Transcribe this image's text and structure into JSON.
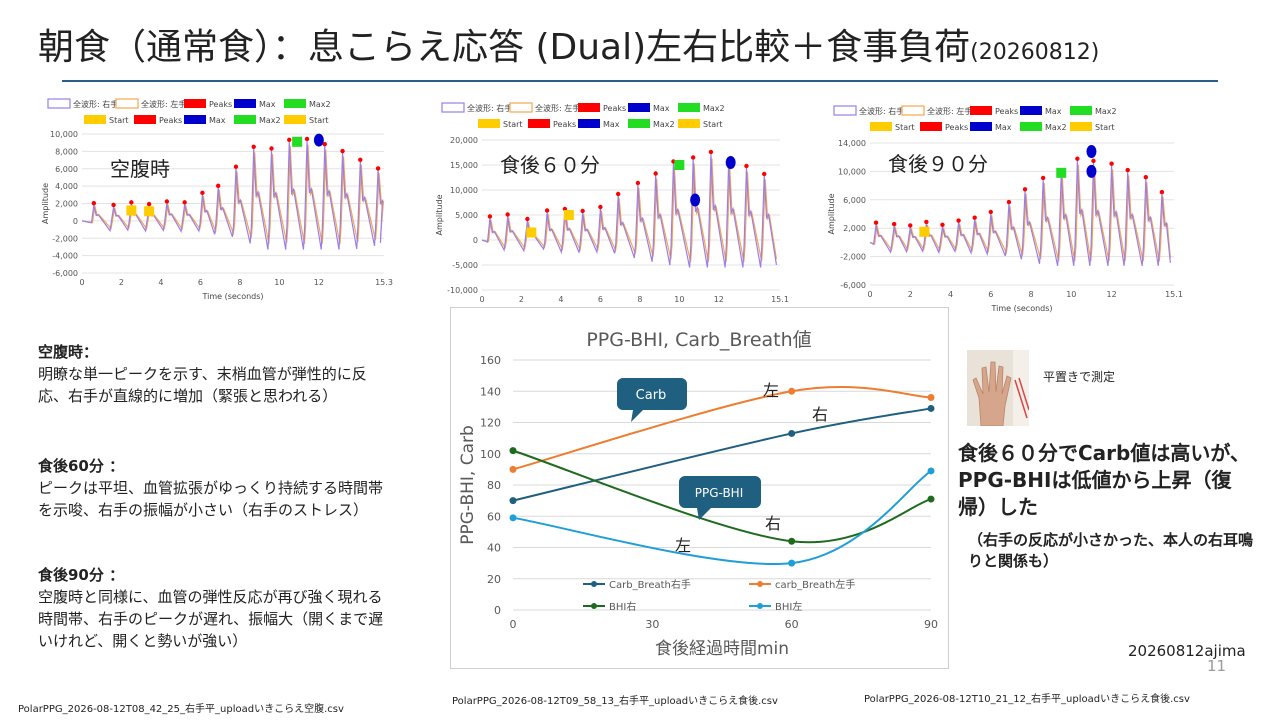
{
  "slide": {
    "title": "朝食（通常食）：息こらえ応答 (Dual)左右比較＋食事負荷",
    "title_date": "(20260812)",
    "author": "20260812ajima",
    "slide_number": "11",
    "photo_caption": "平置きで測定",
    "conclusion": "食後６０分でCarb値は高いが、PPG-BHIは低値から上昇（復帰）した",
    "conclusion_sub": "（右手の反応が小さかった、本人の右耳鳴りと関係も）"
  },
  "notes": [
    {
      "heading": "空腹時：",
      "body": "明瞭な単一ピークを示す、末梢血管が弾性的に反応、右手が直線的に増加（緊張と思われる）"
    },
    {
      "heading": "食後60分 ：",
      "body": "ピークは平坦、血管拡張がゆっくり持続する時間帯を示唆、右手の振幅が小さい（右手のストレス）"
    },
    {
      "heading": "食後90分 ：",
      "body": " 空腹時と同様に、血管の弾性反応が再び強く現れる時間帯、右手のピークが遅れ、振幅大（開くまで遅いけれど、開くと勢いが強い）"
    }
  ],
  "files": [
    "PolarPPG_2026-08-12T08_42_25_右手平_uploadいきこらえ空腹.csv",
    "PolarPPG_2026-08-12T09_58_13_右手平_uploadいきこらえ食後.csv",
    "PolarPPG_2026-08-12T10_21_12_右手平_uploadいきこらえ食後.csv"
  ],
  "colors": {
    "right_wave": "#9b7fe6",
    "left_wave": "#f5a651",
    "peaks": "#ff0000",
    "max": "#0000cc",
    "max2": "#22dd22",
    "start": "#ffcc00",
    "carb_right": "#1f5f7f",
    "carb_left": "#ed7d31",
    "bhi_right": "#1e6b1e",
    "bhi_left": "#1f9fd6",
    "callout": "#1f5f7f",
    "title_rule": "#2e5f8a"
  },
  "wave_legend": {
    "row1": [
      "全波形: 右手平",
      "全波形: 左手平",
      "Peaks",
      "Max",
      "Max2"
    ],
    "row2": [
      "Start",
      "Peaks",
      "Max",
      "Max2",
      "Start"
    ]
  },
  "chart_data": [
    {
      "type": "line",
      "label": "空腹時",
      "ylabel": "Amplitude",
      "xlabel": "Time (seconds)",
      "ylim": [
        -6000,
        10000
      ],
      "yticks": [
        "10,000",
        "8,000",
        "6,000",
        "4,000",
        "2,000",
        "0",
        "-2,000",
        "-4,000",
        "-6,000"
      ],
      "xticks": [
        "0",
        "2",
        "4",
        "6",
        "8",
        "10",
        "12",
        "15.3"
      ],
      "xmax": 15.3,
      "beat_times": [
        0.6,
        1.6,
        2.5,
        3.4,
        4.3,
        5.2,
        6.1,
        6.9,
        7.8,
        8.7,
        9.6,
        10.5,
        11.4,
        12.3,
        13.2,
        14.1,
        15.0
      ],
      "beat_peaks": [
        1800,
        1600,
        1900,
        1700,
        2000,
        1900,
        3000,
        3800,
        6000,
        8300,
        8100,
        9100,
        9200,
        8600,
        7800,
        6800,
        5800
      ],
      "max": [
        {
          "x": 12.0,
          "y": 9300
        }
      ],
      "max2": [
        {
          "x": 10.9,
          "y": 9100
        }
      ],
      "start": [
        {
          "x": 2.5,
          "y": 1200
        },
        {
          "x": 3.4,
          "y": 1100
        }
      ]
    },
    {
      "type": "line",
      "label": "食後６０分",
      "ylabel": "Amplitude",
      "xlabel": "Time (seconds)",
      "ylim": [
        -10000,
        20000
      ],
      "yticks": [
        "20,000",
        "15,000",
        "10,000",
        "5,000",
        "0",
        "-5,000",
        "-10,000"
      ],
      "xticks": [
        "0",
        "2",
        "4",
        "6",
        "8",
        "10",
        "12",
        "15.1"
      ],
      "xmax": 15.1,
      "beat_times": [
        0.4,
        1.3,
        2.3,
        3.3,
        4.2,
        5.1,
        6.0,
        6.9,
        7.9,
        8.8,
        9.7,
        10.7,
        11.6,
        12.5,
        13.4,
        14.3
      ],
      "beat_peaks": [
        4300,
        4700,
        3800,
        5500,
        5800,
        5400,
        6200,
        8800,
        11000,
        12900,
        15300,
        16100,
        17200,
        15600,
        14400,
        12800
      ],
      "max": [
        {
          "x": 10.8,
          "y": 8000
        },
        {
          "x": 12.6,
          "y": 15500
        }
      ],
      "max2": [
        {
          "x": 10.0,
          "y": 15000
        }
      ],
      "start": [
        {
          "x": 2.5,
          "y": 1500
        },
        {
          "x": 4.4,
          "y": 5000
        }
      ]
    },
    {
      "type": "line",
      "label": "食後９０分",
      "ylabel": "Amplitude",
      "xlabel": "Time (seconds)",
      "ylim": [
        -6000,
        14000
      ],
      "yticks": [
        "14,000",
        "10,000",
        "6,000",
        "2,000",
        "-2,000",
        "-6,000"
      ],
      "xticks": [
        "0",
        "2",
        "4",
        "6",
        "8",
        "10",
        "12",
        "15.1"
      ],
      "xmax": 15.1,
      "beat_times": [
        0.3,
        1.2,
        2.0,
        2.8,
        3.6,
        4.4,
        5.2,
        6.0,
        6.9,
        7.7,
        8.6,
        9.5,
        10.3,
        11.1,
        12.0,
        12.8,
        13.7,
        14.5
      ],
      "beat_peaks": [
        2500,
        2300,
        2100,
        2600,
        2200,
        2800,
        3200,
        4000,
        5400,
        7200,
        8800,
        9800,
        11500,
        11200,
        10800,
        9900,
        8900,
        6800
      ],
      "max": [
        {
          "x": 11.0,
          "y": 12800
        },
        {
          "x": 11.0,
          "y": 10000
        }
      ],
      "max2": [
        {
          "x": 9.5,
          "y": 9800
        }
      ],
      "start": [
        {
          "x": 2.7,
          "y": 1500
        }
      ]
    },
    {
      "type": "line",
      "title": "PPG-BHI, Carb_Breath値",
      "xlabel": "食後経過時間min",
      "ylabel": "PPG-BHI, Carb",
      "x": [
        0,
        60,
        90
      ],
      "xticks": [
        0,
        30,
        60,
        90
      ],
      "ylim": [
        0,
        160
      ],
      "yticks": [
        0,
        20,
        40,
        60,
        80,
        100,
        120,
        140,
        160
      ],
      "series": [
        {
          "name": "Carb_Breath右手",
          "values": [
            70,
            113,
            129
          ]
        },
        {
          "name": "carb_Breath左手",
          "values": [
            90,
            140,
            136
          ]
        },
        {
          "name": "BHI右",
          "values": [
            102,
            44,
            71
          ]
        },
        {
          "name": "BHI左",
          "values": [
            59,
            30,
            89
          ]
        }
      ],
      "callouts": [
        "Carb",
        "PPG-BHI"
      ],
      "annotations": [
        "左",
        "右",
        "右",
        "左"
      ],
      "legend": "bottom"
    }
  ]
}
